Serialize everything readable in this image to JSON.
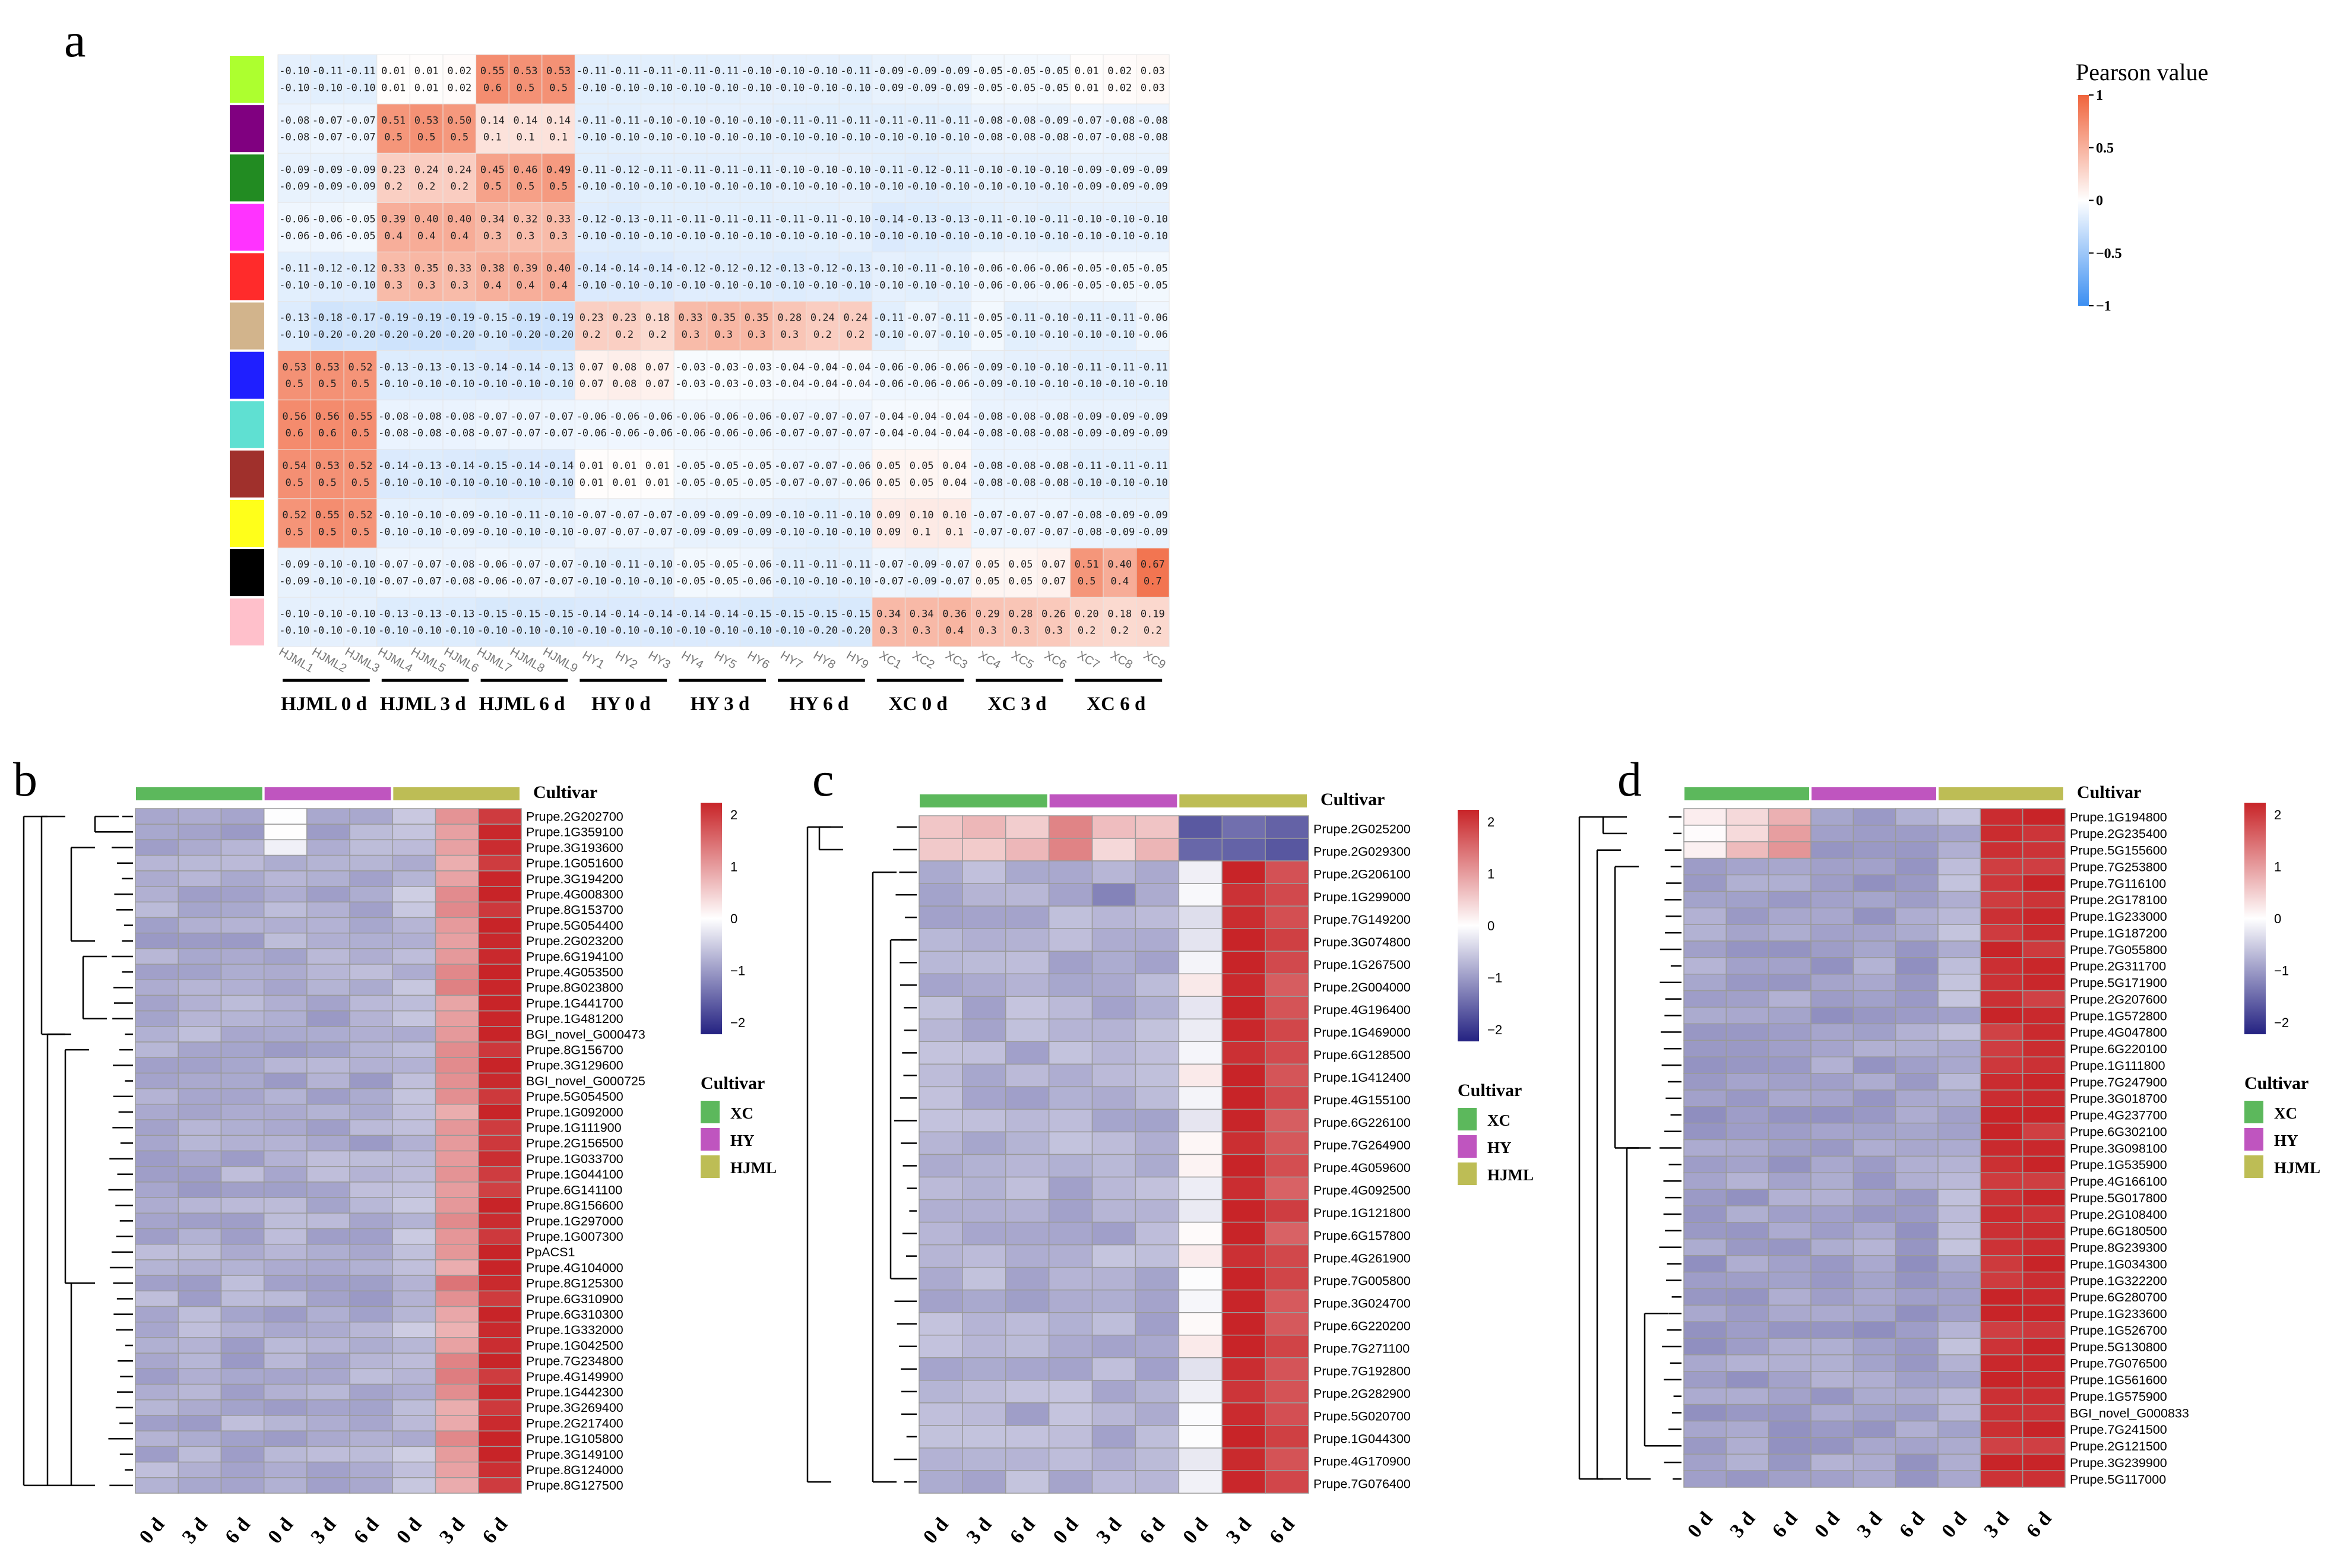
{
  "figure": {
    "panel_labels": {
      "a": "a",
      "b": "b",
      "c": "c",
      "d": "d"
    }
  },
  "chart_data": [
    {
      "type": "heatmap",
      "panel": "a",
      "legend_title": "Pearson value",
      "legend_ticks": [
        "1",
        "0.5",
        "0",
        "−0.5",
        "−1"
      ],
      "legend_range": [
        -1,
        1
      ],
      "colors": {
        "low": "#3c8ff2",
        "mid": "#ffffff",
        "high": "#f0643c"
      },
      "module_colors": [
        "#adff2f",
        "#800080",
        "#228b22",
        "#ff33ff",
        "#ff2b2b",
        "#d2b48c",
        "#1f1fff",
        "#5fe0d2",
        "#a0302c",
        "#ffff1a",
        "#000000",
        "#ffc0cb"
      ],
      "columns": [
        "HJML1",
        "HJML2",
        "HJML3",
        "HJML4",
        "HJML5",
        "HJML6",
        "HJML7",
        "HJML8",
        "HJML9",
        "HY1",
        "HY2",
        "HY3",
        "HY4",
        "HY5",
        "HY6",
        "HY7",
        "HY8",
        "HY9",
        "XC1",
        "XC2",
        "XC3",
        "XC4",
        "XC5",
        "XC6",
        "XC7",
        "XC8",
        "XC9"
      ],
      "groups": [
        "HJML 0 d",
        "HJML 3 d",
        "HJML 6 d",
        "HY 0 d",
        "HY 3 d",
        "HY 6 d",
        "XC 0 d",
        "XC 3 d",
        "XC 6 d"
      ],
      "values": [
        [
          "-0.10",
          "-0.11",
          "-0.11",
          "0.01",
          "0.01",
          "0.02",
          "0.55",
          "0.53",
          "0.53",
          "-0.11",
          "-0.11",
          "-0.11",
          "-0.11",
          "-0.11",
          "-0.10",
          "-0.10",
          "-0.10",
          "-0.11",
          "-0.09",
          "-0.09",
          "-0.09",
          "-0.05",
          "-0.05",
          "-0.05",
          "0.01",
          "0.02",
          "0.03"
        ],
        [
          "-0.08",
          "-0.07",
          "-0.07",
          "0.51",
          "0.53",
          "0.50",
          "0.14",
          "0.14",
          "0.14",
          "-0.11",
          "-0.11",
          "-0.10",
          "-0.10",
          "-0.10",
          "-0.10",
          "-0.11",
          "-0.11",
          "-0.11",
          "-0.11",
          "-0.11",
          "-0.11",
          "-0.08",
          "-0.08",
          "-0.09",
          "-0.07",
          "-0.08",
          "-0.08"
        ],
        [
          "-0.09",
          "-0.09",
          "-0.09",
          "0.23",
          "0.24",
          "0.24",
          "0.45",
          "0.46",
          "0.49",
          "-0.11",
          "-0.12",
          "-0.11",
          "-0.11",
          "-0.11",
          "-0.11",
          "-0.10",
          "-0.10",
          "-0.10",
          "-0.11",
          "-0.12",
          "-0.11",
          "-0.10",
          "-0.10",
          "-0.10",
          "-0.09",
          "-0.09",
          "-0.09"
        ],
        [
          "-0.06",
          "-0.06",
          "-0.05",
          "0.39",
          "0.40",
          "0.40",
          "0.34",
          "0.32",
          "0.33",
          "-0.12",
          "-0.13",
          "-0.11",
          "-0.11",
          "-0.11",
          "-0.11",
          "-0.11",
          "-0.11",
          "-0.10",
          "-0.14",
          "-0.13",
          "-0.13",
          "-0.11",
          "-0.10",
          "-0.11",
          "-0.10",
          "-0.10",
          "-0.10"
        ],
        [
          "-0.11",
          "-0.12",
          "-0.12",
          "0.33",
          "0.35",
          "0.33",
          "0.38",
          "0.39",
          "0.40",
          "-0.14",
          "-0.14",
          "-0.14",
          "-0.12",
          "-0.12",
          "-0.12",
          "-0.13",
          "-0.12",
          "-0.13",
          "-0.10",
          "-0.11",
          "-0.10",
          "-0.06",
          "-0.06",
          "-0.06",
          "-0.05",
          "-0.05",
          "-0.05"
        ],
        [
          "-0.13",
          "-0.18",
          "-0.17",
          "-0.19",
          "-0.19",
          "-0.19",
          "-0.15",
          "-0.19",
          "-0.19",
          "0.23",
          "0.23",
          "0.18",
          "0.33",
          "0.35",
          "0.35",
          "0.28",
          "0.24",
          "0.24",
          "-0.11",
          "-0.07",
          "-0.11",
          "-0.05",
          "-0.11",
          "-0.10",
          "-0.11",
          "-0.11",
          "-0.06"
        ],
        [
          "0.53",
          "0.53",
          "0.52",
          "-0.13",
          "-0.13",
          "-0.13",
          "-0.14",
          "-0.14",
          "-0.13",
          "0.07",
          "0.08",
          "0.07",
          "-0.03",
          "-0.03",
          "-0.03",
          "-0.04",
          "-0.04",
          "-0.04",
          "-0.06",
          "-0.06",
          "-0.06",
          "-0.09",
          "-0.10",
          "-0.10",
          "-0.11",
          "-0.11",
          "-0.11"
        ],
        [
          "0.56",
          "0.56",
          "0.55",
          "-0.08",
          "-0.08",
          "-0.08",
          "-0.07",
          "-0.07",
          "-0.07",
          "-0.06",
          "-0.06",
          "-0.06",
          "-0.06",
          "-0.06",
          "-0.06",
          "-0.07",
          "-0.07",
          "-0.07",
          "-0.04",
          "-0.04",
          "-0.04",
          "-0.08",
          "-0.08",
          "-0.08",
          "-0.09",
          "-0.09",
          "-0.09"
        ],
        [
          "0.54",
          "0.53",
          "0.52",
          "-0.14",
          "-0.13",
          "-0.14",
          "-0.15",
          "-0.14",
          "-0.14",
          "0.01",
          "0.01",
          "0.01",
          "-0.05",
          "-0.05",
          "-0.05",
          "-0.07",
          "-0.07",
          "-0.06",
          "0.05",
          "0.05",
          "0.04",
          "-0.08",
          "-0.08",
          "-0.08",
          "-0.11",
          "-0.11",
          "-0.11"
        ],
        [
          "0.52",
          "0.55",
          "0.52",
          "-0.10",
          "-0.10",
          "-0.09",
          "-0.10",
          "-0.11",
          "-0.10",
          "-0.07",
          "-0.07",
          "-0.07",
          "-0.09",
          "-0.09",
          "-0.09",
          "-0.10",
          "-0.11",
          "-0.10",
          "0.09",
          "0.10",
          "0.10",
          "-0.07",
          "-0.07",
          "-0.07",
          "-0.08",
          "-0.09",
          "-0.09"
        ],
        [
          "-0.09",
          "-0.10",
          "-0.10",
          "-0.07",
          "-0.07",
          "-0.08",
          "-0.06",
          "-0.07",
          "-0.07",
          "-0.10",
          "-0.11",
          "-0.10",
          "-0.05",
          "-0.05",
          "-0.06",
          "-0.11",
          "-0.11",
          "-0.11",
          "-0.07",
          "-0.09",
          "-0.07",
          "0.05",
          "0.05",
          "0.07",
          "0.51",
          "0.40",
          "0.67"
        ],
        [
          "-0.10",
          "-0.10",
          "-0.10",
          "-0.13",
          "-0.13",
          "-0.13",
          "-0.15",
          "-0.15",
          "-0.15",
          "-0.14",
          "-0.14",
          "-0.14",
          "-0.14",
          "-0.14",
          "-0.15",
          "-0.15",
          "-0.15",
          "-0.15",
          "0.34",
          "0.34",
          "0.36",
          "0.29",
          "0.28",
          "0.26",
          "0.20",
          "0.18",
          "0.19"
        ]
      ],
      "second_values": [
        [
          "-0.10",
          "-0.10",
          "-0.10",
          "0.01",
          "0.01",
          "0.02",
          "0.6",
          "0.5",
          "0.5",
          "-0.10",
          "-0.10",
          "-0.10",
          "-0.10",
          "-0.10",
          "-0.10",
          "-0.10",
          "-0.10",
          "-0.10",
          "-0.09",
          "-0.09",
          "-0.09",
          "-0.05",
          "-0.05",
          "-0.05",
          "0.01",
          "0.02",
          "0.03"
        ],
        [
          "-0.08",
          "-0.07",
          "-0.07",
          "0.5",
          "0.5",
          "0.5",
          "0.1",
          "0.1",
          "0.1",
          "-0.10",
          "-0.10",
          "-0.10",
          "-0.10",
          "-0.10",
          "-0.10",
          "-0.10",
          "-0.10",
          "-0.10",
          "-0.10",
          "-0.10",
          "-0.10",
          "-0.08",
          "-0.08",
          "-0.08",
          "-0.07",
          "-0.08",
          "-0.08"
        ],
        [
          "-0.09",
          "-0.09",
          "-0.09",
          "0.2",
          "0.2",
          "0.2",
          "0.5",
          "0.5",
          "0.5",
          "-0.10",
          "-0.10",
          "-0.10",
          "-0.10",
          "-0.10",
          "-0.10",
          "-0.10",
          "-0.10",
          "-0.10",
          "-0.10",
          "-0.10",
          "-0.10",
          "-0.10",
          "-0.10",
          "-0.10",
          "-0.09",
          "-0.09",
          "-0.09"
        ],
        [
          "-0.06",
          "-0.06",
          "-0.05",
          "0.4",
          "0.4",
          "0.4",
          "0.3",
          "0.3",
          "0.3",
          "-0.10",
          "-0.10",
          "-0.10",
          "-0.10",
          "-0.10",
          "-0.10",
          "-0.10",
          "-0.10",
          "-0.10",
          "-0.10",
          "-0.10",
          "-0.10",
          "-0.10",
          "-0.10",
          "-0.10",
          "-0.10",
          "-0.10",
          "-0.10"
        ],
        [
          "-0.10",
          "-0.10",
          "-0.10",
          "0.3",
          "0.3",
          "0.3",
          "0.4",
          "0.4",
          "0.4",
          "-0.10",
          "-0.10",
          "-0.10",
          "-0.10",
          "-0.10",
          "-0.10",
          "-0.10",
          "-0.10",
          "-0.10",
          "-0.10",
          "-0.10",
          "-0.10",
          "-0.06",
          "-0.06",
          "-0.06",
          "-0.05",
          "-0.05",
          "-0.05"
        ],
        [
          "-0.10",
          "-0.20",
          "-0.20",
          "-0.20",
          "-0.20",
          "-0.20",
          "-0.10",
          "-0.20",
          "-0.20",
          "0.2",
          "0.2",
          "0.2",
          "0.3",
          "0.3",
          "0.3",
          "0.3",
          "0.2",
          "0.2",
          "-0.10",
          "-0.07",
          "-0.10",
          "-0.05",
          "-0.10",
          "-0.10",
          "-0.10",
          "-0.10",
          "-0.06"
        ],
        [
          "0.5",
          "0.5",
          "0.5",
          "-0.10",
          "-0.10",
          "-0.10",
          "-0.10",
          "-0.10",
          "-0.10",
          "0.07",
          "0.08",
          "0.07",
          "-0.03",
          "-0.03",
          "-0.03",
          "-0.04",
          "-0.04",
          "-0.04",
          "-0.06",
          "-0.06",
          "-0.06",
          "-0.09",
          "-0.10",
          "-0.10",
          "-0.10",
          "-0.10",
          "-0.10"
        ],
        [
          "0.6",
          "0.6",
          "0.5",
          "-0.08",
          "-0.08",
          "-0.08",
          "-0.07",
          "-0.07",
          "-0.07",
          "-0.06",
          "-0.06",
          "-0.06",
          "-0.06",
          "-0.06",
          "-0.06",
          "-0.07",
          "-0.07",
          "-0.07",
          "-0.04",
          "-0.04",
          "-0.04",
          "-0.08",
          "-0.08",
          "-0.08",
          "-0.09",
          "-0.09",
          "-0.09"
        ],
        [
          "0.5",
          "0.5",
          "0.5",
          "-0.10",
          "-0.10",
          "-0.10",
          "-0.10",
          "-0.10",
          "-0.10",
          "0.01",
          "0.01",
          "0.01",
          "-0.05",
          "-0.05",
          "-0.05",
          "-0.07",
          "-0.07",
          "-0.06",
          "0.05",
          "0.05",
          "0.04",
          "-0.08",
          "-0.08",
          "-0.08",
          "-0.10",
          "-0.10",
          "-0.10"
        ],
        [
          "0.5",
          "0.5",
          "0.5",
          "-0.10",
          "-0.10",
          "-0.09",
          "-0.10",
          "-0.10",
          "-0.10",
          "-0.07",
          "-0.07",
          "-0.07",
          "-0.09",
          "-0.09",
          "-0.09",
          "-0.10",
          "-0.10",
          "-0.10",
          "0.09",
          "0.1",
          "0.1",
          "-0.07",
          "-0.07",
          "-0.07",
          "-0.08",
          "-0.09",
          "-0.09"
        ],
        [
          "-0.09",
          "-0.10",
          "-0.10",
          "-0.07",
          "-0.07",
          "-0.08",
          "-0.06",
          "-0.07",
          "-0.07",
          "-0.10",
          "-0.10",
          "-0.10",
          "-0.05",
          "-0.05",
          "-0.06",
          "-0.10",
          "-0.10",
          "-0.10",
          "-0.07",
          "-0.09",
          "-0.07",
          "0.05",
          "0.05",
          "0.07",
          "0.5",
          "0.4",
          "0.7"
        ],
        [
          "-0.10",
          "-0.10",
          "-0.10",
          "-0.10",
          "-0.10",
          "-0.10",
          "-0.10",
          "-0.10",
          "-0.10",
          "-0.10",
          "-0.10",
          "-0.10",
          "-0.10",
          "-0.10",
          "-0.10",
          "-0.10",
          "-0.20",
          "-0.20",
          "0.3",
          "0.3",
          "0.4",
          "0.3",
          "0.3",
          "0.3",
          "0.2",
          "0.2",
          "0.2"
        ]
      ]
    },
    {
      "type": "heatmap",
      "panel": "b",
      "annotation_title": "Cultivar",
      "cultivars": [
        {
          "name": "XC",
          "color": "#5cb85c"
        },
        {
          "name": "HY",
          "color": "#bf55bf"
        },
        {
          "name": "HJML",
          "color": "#bdbd55"
        }
      ],
      "col_labels": [
        "0 d",
        "3 d",
        "6 d",
        "0 d",
        "3 d",
        "6 d",
        "0 d",
        "3 d",
        "6 d"
      ],
      "scale_ticks": [
        "2",
        "1",
        "0",
        "−1",
        "−2"
      ],
      "scale_range": [
        -2,
        2
      ],
      "genes": [
        "Prupe.2G202700",
        "Prupe.1G359100",
        "Prupe.3G193600",
        "Prupe.1G051600",
        "Prupe.3G194200",
        "Prupe.4G008300",
        "Prupe.8G153700",
        "Prupe.5G054400",
        "Prupe.2G023200",
        "Prupe.6G194100",
        "Prupe.4G053500",
        "Prupe.8G023800",
        "Prupe.1G441700",
        "Prupe.1G481200",
        "BGI_novel_G000473",
        "Prupe.8G156700",
        "Prupe.3G129600",
        "BGI_novel_G000725",
        "Prupe.5G054500",
        "Prupe.1G092000",
        "Prupe.1G111900",
        "Prupe.2G156500",
        "Prupe.1G033700",
        "Prupe.1G044100",
        "Prupe.6G141100",
        "Prupe.8G156600",
        "Prupe.1G297000",
        "Prupe.1G007300",
        "PpACS1",
        "Prupe.4G104000",
        "Prupe.8G125300",
        "Prupe.6G310900",
        "Prupe.6G310300",
        "Prupe.1G332000",
        "Prupe.1G042500",
        "Prupe.7G234800",
        "Prupe.4G149900",
        "Prupe.1G442300",
        "Prupe.3G269400",
        "Prupe.2G217400",
        "Prupe.1G105800",
        "Prupe.3G149100",
        "Prupe.8G124000",
        "Prupe.8G127500"
      ]
    },
    {
      "type": "heatmap",
      "panel": "c",
      "annotation_title": "Cultivar",
      "cultivars": [
        {
          "name": "XC",
          "color": "#5cb85c"
        },
        {
          "name": "HY",
          "color": "#bf55bf"
        },
        {
          "name": "HJML",
          "color": "#bdbd55"
        }
      ],
      "col_labels": [
        "0 d",
        "3 d",
        "6 d",
        "0 d",
        "3 d",
        "6 d",
        "0 d",
        "3 d",
        "6 d"
      ],
      "scale_ticks": [
        "2",
        "1",
        "0",
        "−1",
        "−2"
      ],
      "scale_range": [
        -2,
        2
      ],
      "genes": [
        "Prupe.2G025200",
        "Prupe.2G029300",
        "Prupe.2G206100",
        "Prupe.1G299000",
        "Prupe.7G149200",
        "Prupe.3G074800",
        "Prupe.1G267500",
        "Prupe.2G004000",
        "Prupe.4G196400",
        "Prupe.1G469000",
        "Prupe.6G128500",
        "Prupe.1G412400",
        "Prupe.4G155100",
        "Prupe.6G226100",
        "Prupe.7G264900",
        "Prupe.4G059600",
        "Prupe.4G092500",
        "Prupe.1G121800",
        "Prupe.6G157800",
        "Prupe.4G261900",
        "Prupe.7G005800",
        "Prupe.3G024700",
        "Prupe.6G220200",
        "Prupe.7G271100",
        "Prupe.7G192800",
        "Prupe.2G282900",
        "Prupe.5G020700",
        "Prupe.1G044300",
        "Prupe.4G170900",
        "Prupe.7G076400"
      ]
    },
    {
      "type": "heatmap",
      "panel": "d",
      "annotation_title": "Cultivar",
      "cultivars": [
        {
          "name": "XC",
          "color": "#5cb85c"
        },
        {
          "name": "HY",
          "color": "#bf55bf"
        },
        {
          "name": "HJML",
          "color": "#bdbd55"
        }
      ],
      "col_labels": [
        "0 d",
        "3 d",
        "6 d",
        "0 d",
        "3 d",
        "6 d",
        "0 d",
        "3 d",
        "6 d"
      ],
      "scale_ticks": [
        "2",
        "1",
        "0",
        "−1",
        "−2"
      ],
      "scale_range": [
        -2,
        2
      ],
      "genes": [
        "Prupe.1G194800",
        "Prupe.2G235400",
        "Prupe.5G155600",
        "Prupe.7G253800",
        "Prupe.7G116100",
        "Prupe.2G178100",
        "Prupe.1G233000",
        "Prupe.1G187200",
        "Prupe.7G055800",
        "Prupe.2G311700",
        "Prupe.5G171900",
        "Prupe.2G207600",
        "Prupe.1G572800",
        "Prupe.4G047800",
        "Prupe.6G220100",
        "Prupe.1G111800",
        "Prupe.7G247900",
        "Prupe.3G018700",
        "Prupe.4G237700",
        "Prupe.6G302100",
        "Prupe.3G098100",
        "Prupe.1G535900",
        "Prupe.4G166100",
        "Prupe.5G017800",
        "Prupe.2G108400",
        "Prupe.6G180500",
        "Prupe.8G239300",
        "Prupe.1G034300",
        "Prupe.1G322200",
        "Prupe.6G280700",
        "Prupe.1G233600",
        "Prupe.1G526700",
        "Prupe.5G130800",
        "Prupe.7G076500",
        "Prupe.1G561600",
        "Prupe.1G575900",
        "BGI_novel_G000833",
        "Prupe.7G241500",
        "Prupe.2G121500",
        "Prupe.3G239900",
        "Prupe.5G117000"
      ]
    }
  ]
}
